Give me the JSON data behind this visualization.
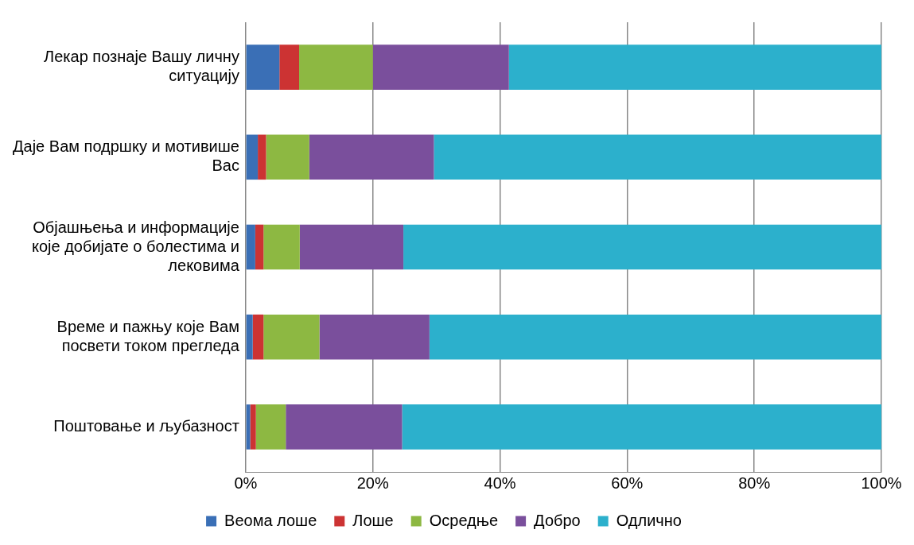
{
  "chart_data": {
    "type": "bar",
    "orientation": "horizontal",
    "stacked": true,
    "categories": [
      "Лекар познаје Вашу личну ситуацију",
      "Даје Вам подршку и мотивише Вас",
      "Објашњења и информације које добијате о болестима и лековима",
      "Време и пажњу које Вам посвети током прегледа",
      "Поштовање и љубазност"
    ],
    "series": [
      {
        "name": "Веома лоше",
        "color": "#3a6fb6",
        "values": [
          5.3,
          1.9,
          1.5,
          1.1,
          0.7
        ]
      },
      {
        "name": "Лоше",
        "color": "#cc3333",
        "values": [
          3.1,
          1.3,
          1.3,
          1.7,
          0.9
        ]
      },
      {
        "name": "Осредње",
        "color": "#8db842",
        "values": [
          11.6,
          6.8,
          5.7,
          8.8,
          4.7
        ]
      },
      {
        "name": "Добро",
        "color": "#7a4f9c",
        "values": [
          21.4,
          19.6,
          16.3,
          17.3,
          18.3
        ]
      },
      {
        "name": "Одлично",
        "color": "#2cb0cc",
        "values": [
          58.6,
          70.4,
          75.2,
          71.1,
          75.4
        ]
      }
    ],
    "xlim": [
      0,
      100
    ],
    "xticks": [
      {
        "value": 0,
        "label": "0%"
      },
      {
        "value": 20,
        "label": "20%"
      },
      {
        "value": 40,
        "label": "40%"
      },
      {
        "value": 60,
        "label": "60%"
      },
      {
        "value": 80,
        "label": "80%"
      },
      {
        "value": 100,
        "label": "100%"
      }
    ],
    "grid": "x",
    "legend": "bottom"
  }
}
